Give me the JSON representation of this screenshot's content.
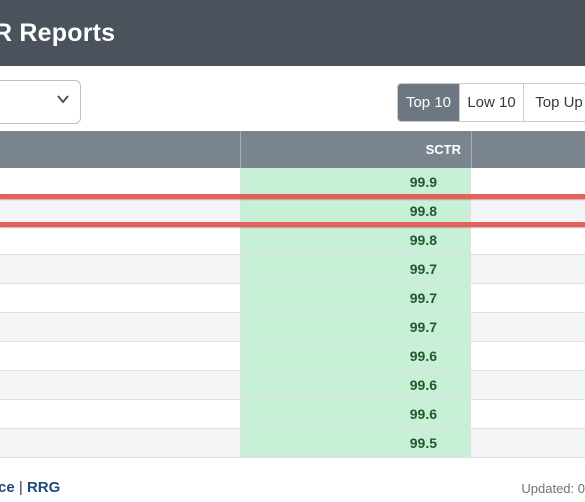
{
  "header": {
    "title": "R Reports"
  },
  "filters": {
    "dropdown_value": "",
    "segments": [
      {
        "label": "Top 10",
        "active": true
      },
      {
        "label": "Low 10",
        "active": false
      },
      {
        "label": "Top Up",
        "active": false
      }
    ]
  },
  "table": {
    "columns": {
      "sctr": "SCTR"
    },
    "rows": [
      {
        "sctr": "99.9"
      },
      {
        "sctr": "99.8"
      },
      {
        "sctr": "99.8"
      },
      {
        "sctr": "99.7"
      },
      {
        "sctr": "99.7"
      },
      {
        "sctr": "99.7"
      },
      {
        "sctr": "99.6"
      },
      {
        "sctr": "99.6"
      },
      {
        "sctr": "99.6"
      },
      {
        "sctr": "99.5"
      }
    ],
    "highlighted_row_index": 1
  },
  "footer": {
    "link1": "ce",
    "separator": "|",
    "link2": "RRG",
    "updated": "Updated: 0"
  },
  "colors": {
    "header_bg": "#4a525c",
    "table_header_bg": "#7b858f",
    "sctr_cell_bg": "#c8f0d6",
    "highlight_line": "#e0625a"
  }
}
